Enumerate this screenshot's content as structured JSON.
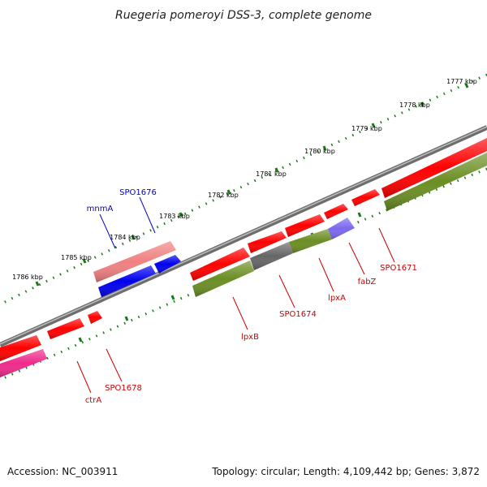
{
  "title": "Ruegeria pomeroyi DSS-3, complete genome",
  "footer": {
    "accession": "Accession: NC_003911",
    "summary": "Topology: circular; Length: 4,109,442 bp; Genes: 3,872"
  },
  "scale_labels": [
    "1777 kbp",
    "1778 kbp",
    "1779 kbp",
    "1780 kbp",
    "1781 kbp",
    "1782 kbp",
    "1783 kbp",
    "1784 kbp",
    "1785 kbp",
    "1786 kbp"
  ],
  "gene_labels": {
    "spo1676": "SPO1676",
    "mnma": "mnmA",
    "spo1671": "SPO1671",
    "fabz": "fabZ",
    "lpxa": "lpxA",
    "spo1674": "SPO1674",
    "lpxb": "lpxB",
    "spo1678": "SPO1678",
    "ctra": "ctrA"
  },
  "colors": {
    "backbone": "#808080",
    "tick": "#1a7a1a",
    "gene_red": "#ff0000",
    "gene_pink": "#f08080",
    "gene_blue": "#0000ee",
    "gene_olive": "#6b8e23",
    "gene_gray": "#666666",
    "gene_purple": "#7b68ee",
    "gene_magenta": "#ee2b8c",
    "label_blue": "#0000cc",
    "label_red": "#cc0000"
  }
}
